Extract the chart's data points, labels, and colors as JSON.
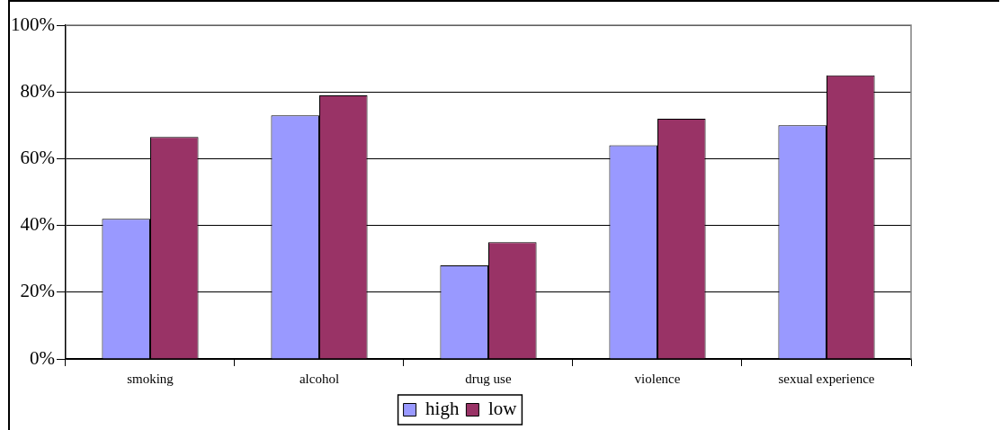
{
  "chart_data": {
    "type": "bar",
    "categories": [
      "smoking",
      "alcohol",
      "drug use",
      "violence",
      "sexual experience"
    ],
    "series": [
      {
        "name": "high",
        "color": "#9999ff",
        "values": [
          42,
          73,
          28,
          64,
          70
        ]
      },
      {
        "name": "low",
        "color": "#993366",
        "values": [
          66.5,
          79,
          35,
          72,
          85
        ]
      }
    ],
    "ylim": [
      0,
      100
    ],
    "yticks": [
      {
        "value": 0,
        "label": "0%"
      },
      {
        "value": 20,
        "label": "20%"
      },
      {
        "value": 40,
        "label": "40%"
      },
      {
        "value": 60,
        "label": "60%"
      },
      {
        "value": 80,
        "label": "80%"
      },
      {
        "value": 100,
        "label": "100%"
      }
    ],
    "grid": "y",
    "legend": "bottom"
  }
}
